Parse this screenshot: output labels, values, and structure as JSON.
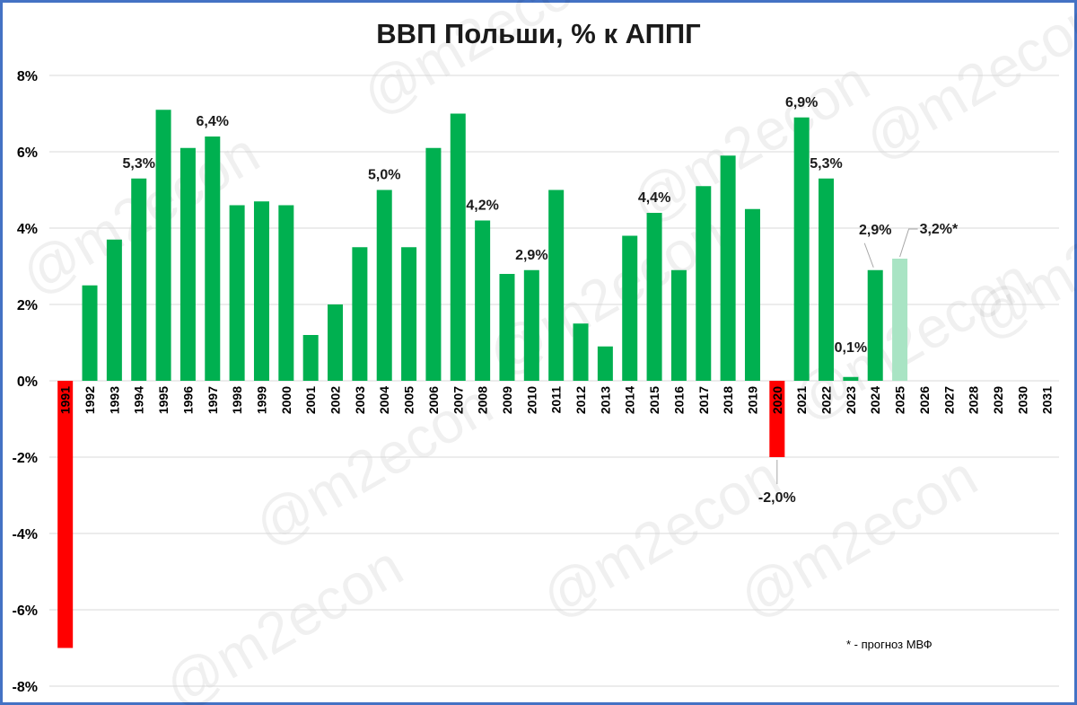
{
  "chart_data": {
    "type": "bar",
    "title": "ВВП Польши, % к АППГ",
    "ylim": [
      -8,
      8
    ],
    "yticks": [
      "-8%",
      "-6%",
      "-4%",
      "-2%",
      "0%",
      "2%",
      "4%",
      "6%",
      "8%"
    ],
    "categories": [
      "1991",
      "1992",
      "1993",
      "1994",
      "1995",
      "1996",
      "1997",
      "1998",
      "1999",
      "2000",
      "2001",
      "2002",
      "2003",
      "2004",
      "2005",
      "2006",
      "2007",
      "2008",
      "2009",
      "2010",
      "2011",
      "2012",
      "2013",
      "2014",
      "2015",
      "2016",
      "2017",
      "2018",
      "2019",
      "2020",
      "2021",
      "2022",
      "2023",
      "2024",
      "2025",
      "2026",
      "2027",
      "2028",
      "2029",
      "2030",
      "2031"
    ],
    "values": [
      -7.0,
      2.5,
      3.7,
      5.3,
      7.1,
      6.1,
      6.4,
      4.6,
      4.7,
      4.6,
      1.2,
      2.0,
      3.5,
      5.0,
      3.5,
      6.1,
      7.0,
      4.2,
      2.8,
      2.9,
      5.0,
      1.5,
      0.9,
      3.8,
      4.4,
      2.9,
      5.1,
      5.9,
      4.5,
      -2.0,
      6.9,
      5.3,
      0.1,
      2.9,
      3.2,
      null,
      null,
      null,
      null,
      null,
      null
    ],
    "bar_colors": {
      "positive": "#00b050",
      "negative": "#ff0000",
      "forecast": "#a9e4c4"
    },
    "forecast_categories": [
      "2025"
    ],
    "data_labels": [
      {
        "category": "1994",
        "text": "5,3%"
      },
      {
        "category": "1997",
        "text": "6,4%"
      },
      {
        "category": "2004",
        "text": "5,0%"
      },
      {
        "category": "2008",
        "text": "4,2%"
      },
      {
        "category": "2010",
        "text": "2,9%"
      },
      {
        "category": "2015",
        "text": "4,4%"
      },
      {
        "category": "2020",
        "text": "-2,0%"
      },
      {
        "category": "2021",
        "text": "6,9%"
      },
      {
        "category": "2022",
        "text": "5,3%"
      },
      {
        "category": "2023",
        "text": "0,1%"
      },
      {
        "category": "2024",
        "text": "2,9%"
      },
      {
        "category": "2025",
        "text": "3,2%*"
      }
    ],
    "grid": true,
    "legend": "none"
  },
  "footnote": "* - прогноз МВФ",
  "watermark": "@m2econ"
}
